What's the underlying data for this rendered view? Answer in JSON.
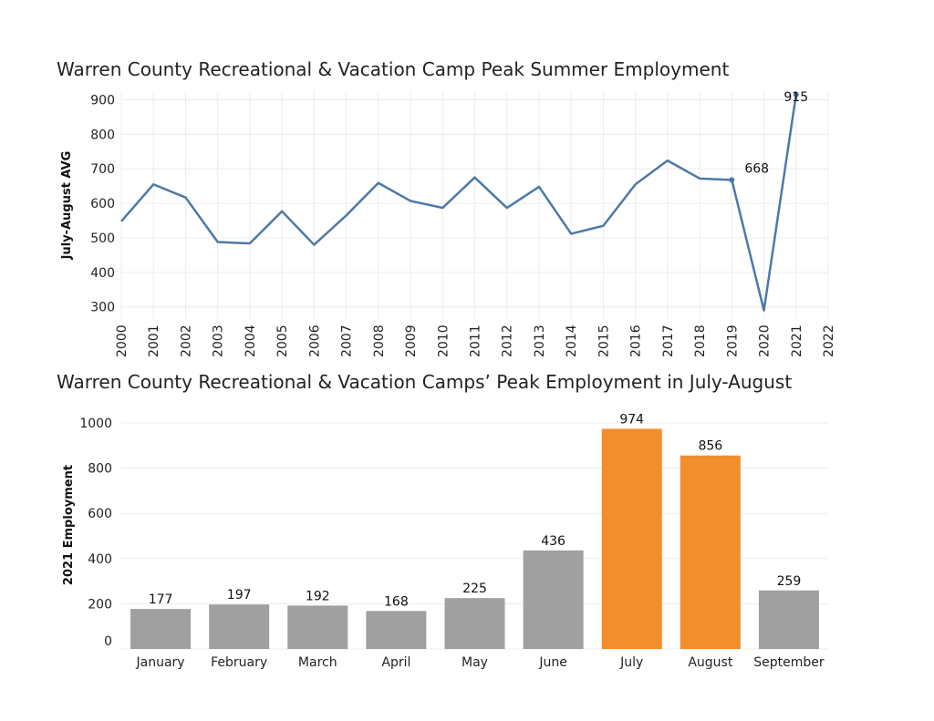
{
  "chart_data": [
    {
      "type": "line",
      "title": "Warren County Recreational & Vacation Camp Peak Summer Employment",
      "xlabel": "",
      "ylabel": "July-August AVG",
      "x": [
        2000,
        2001,
        2002,
        2003,
        2004,
        2005,
        2006,
        2007,
        2008,
        2009,
        2010,
        2011,
        2012,
        2013,
        2014,
        2015,
        2016,
        2017,
        2018,
        2019,
        2020,
        2021
      ],
      "xticks": [
        "2000",
        "2001",
        "2002",
        "2003",
        "2004",
        "2005",
        "2006",
        "2007",
        "2008",
        "2009",
        "2010",
        "2011",
        "2012",
        "2013",
        "2014",
        "2015",
        "2016",
        "2017",
        "2018",
        "2019",
        "2020",
        "2021",
        "2022"
      ],
      "values": [
        548,
        655,
        617,
        488,
        484,
        577,
        480,
        565,
        659,
        607,
        587,
        675,
        587,
        648,
        512,
        535,
        655,
        724,
        672,
        668,
        290,
        915
      ],
      "yticks": [
        300,
        400,
        500,
        600,
        700,
        800,
        900
      ],
      "xlim": [
        2000,
        2022
      ],
      "ylim": [
        265,
        925
      ],
      "annotations": [
        {
          "x": 2019,
          "y": 668,
          "label": "668"
        },
        {
          "x": 2021,
          "y": 915,
          "label": "915"
        }
      ],
      "grid": true,
      "line_color": "#4e79a7"
    },
    {
      "type": "bar",
      "title": "Warren County Recreational & Vacation Camps’ Peak Employment in July-August",
      "xlabel": "",
      "ylabel": "2021 Employment",
      "categories": [
        "January",
        "February",
        "March",
        "April",
        "May",
        "June",
        "July",
        "August",
        "September"
      ],
      "values": [
        177,
        197,
        192,
        168,
        225,
        436,
        974,
        856,
        259
      ],
      "labels": [
        "177",
        "197",
        "192",
        "168",
        "225",
        "436",
        "974",
        "856",
        "259"
      ],
      "highlighted": [
        "July",
        "August"
      ],
      "yticks": [
        0,
        200,
        400,
        600,
        800,
        1000
      ],
      "ylim": [
        0,
        1000
      ],
      "grid": true,
      "bar_color": "#a0a0a0",
      "highlight_color": "#f28e2b"
    }
  ]
}
